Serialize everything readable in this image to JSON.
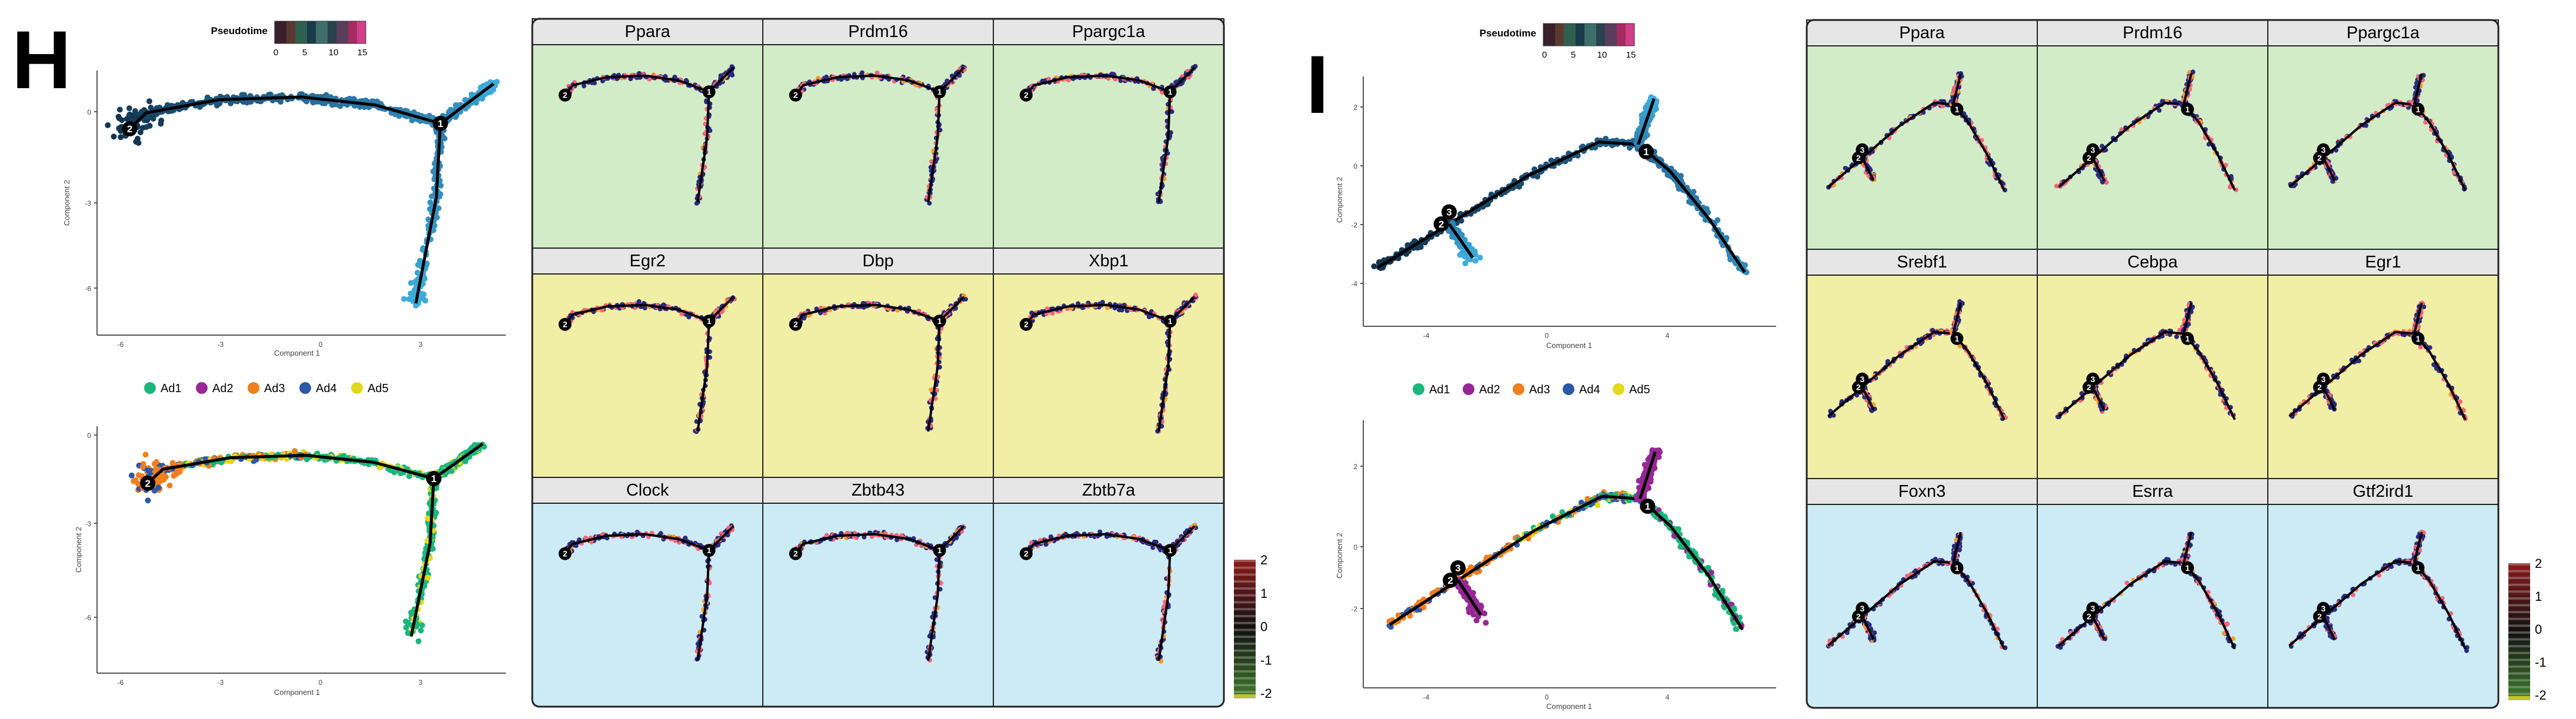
{
  "colors": {
    "ad1": "#1cb57c",
    "ad2": "#952894",
    "ad3": "#f07f1e",
    "ad4": "#2d58a8",
    "ad5": "#e3d81b",
    "green_bg": "#d3ecc8",
    "yellow_bg": "#f1efa6",
    "blue_bg": "#cdebf5",
    "header_bg": "#e6e6e6",
    "expr_low": "#2a2a7e",
    "expr_high": "#f5667a",
    "expr_mid": "#f59b2c",
    "pt_dark": "#12344f",
    "pt_mid": "#2b73a3",
    "pt_light": "#3eaedc"
  },
  "panels": [
    {
      "letter": "H",
      "pseudotime": {
        "title": "Pseudotime",
        "ticks": [
          "0",
          "5",
          "10",
          "15"
        ]
      },
      "legend": [
        "Ad1",
        "Ad2",
        "Ad3",
        "Ad4",
        "Ad5"
      ],
      "axes": {
        "top": {
          "xlabel": "Component 1",
          "ylabel": "Component 2",
          "xticks": [
            "-6",
            "-3",
            "0",
            "3"
          ],
          "yticks": [
            "0",
            "-3",
            "-6"
          ]
        },
        "bottom": {
          "xlabel": "Component 1",
          "ylabel": "Component 2",
          "xticks": [
            "-6",
            "-3",
            "0",
            "3"
          ],
          "yticks": [
            "0",
            "-3",
            "-6"
          ]
        }
      },
      "genes": [
        "Ppara",
        "Prdm16",
        "Ppargc1a",
        "Egr2",
        "Dbp",
        "Xbp1",
        "Clock",
        "Zbtb43",
        "Zbtb7a"
      ],
      "scale": [
        "2",
        "1",
        "0",
        "-1",
        "-2"
      ],
      "branch_labels": [
        "2",
        "1"
      ]
    },
    {
      "letter": "I",
      "pseudotime": {
        "title": "Pseudotime",
        "ticks": [
          "0",
          "5",
          "10",
          "15"
        ]
      },
      "legend": [
        "Ad1",
        "Ad2",
        "Ad3",
        "Ad4",
        "Ad5"
      ],
      "axes": {
        "top": {
          "xlabel": "Component 1",
          "ylabel": "Component 2",
          "xticks": [
            "-4",
            "0",
            "4"
          ],
          "yticks": [
            "2",
            "0",
            "-2",
            "-4"
          ]
        },
        "bottom": {
          "xlabel": "Component 1",
          "ylabel": "Component 2",
          "xticks": [
            "-4",
            "0",
            "4"
          ],
          "yticks": [
            "2",
            "0",
            "-2"
          ]
        }
      },
      "genes": [
        "Ppara",
        "Prdm16",
        "Ppargc1a",
        "Srebf1",
        "Cebpa",
        "Egr1",
        "Foxn3",
        "Esrra",
        "Gtf2ird1"
      ],
      "scale": [
        "2",
        "1",
        "0",
        "-1",
        "-2"
      ],
      "branch_labels": [
        "1",
        "2",
        "3"
      ]
    }
  ]
}
